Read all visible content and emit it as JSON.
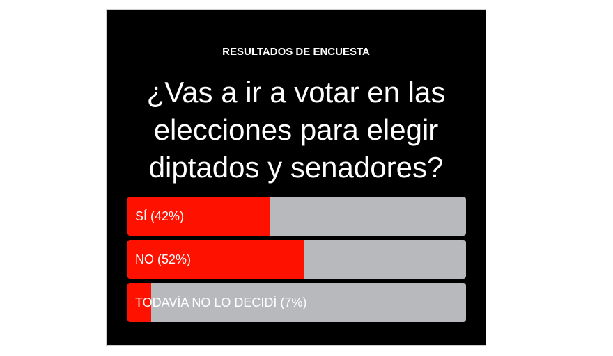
{
  "poll": {
    "kicker": "RESULTADOS DE ENCUESTA",
    "question": "¿Vas a ir a votar en las elecciones para elegir diptados y senadores?"
  },
  "colors": {
    "background": "#000000",
    "fill": "#ff1100",
    "track": "#b7b9bc",
    "text": "#ffffff"
  },
  "chart_data": {
    "type": "bar",
    "orientation": "horizontal",
    "categories": [
      "SÍ",
      "NO",
      "TODAVÍA NO LO DECIDÍ"
    ],
    "values": [
      42,
      52,
      7
    ],
    "labels": [
      "SÍ (42%)",
      "NO (52%)",
      "TODAVÍA NO LO DECIDÍ (7%)"
    ],
    "xlim": [
      0,
      100
    ],
    "unit": "%"
  }
}
